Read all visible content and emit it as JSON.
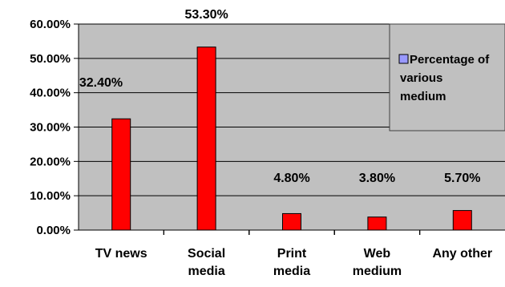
{
  "chart_data": {
    "type": "bar",
    "categories": [
      "TV news",
      "Social media",
      "Print media",
      "Web medium",
      "Any other"
    ],
    "series": [
      {
        "name": "Percentage of various medium",
        "values": [
          32.4,
          53.3,
          4.8,
          3.8,
          5.7
        ],
        "labels": [
          "32.40%",
          "53.30%",
          "4.80%",
          "3.80%",
          "5.70%"
        ]
      }
    ],
    "ylim": [
      0,
      60
    ],
    "yticks": [
      {
        "value": 0,
        "label": "0.00%"
      },
      {
        "value": 10,
        "label": "10.00%"
      },
      {
        "value": 20,
        "label": "20.00%"
      },
      {
        "value": 30,
        "label": "30.00%"
      },
      {
        "value": 40,
        "label": "40.00%"
      },
      {
        "value": 50,
        "label": "50.00%"
      },
      {
        "value": 60,
        "label": "60.00%"
      }
    ],
    "grid": true,
    "legend_placement": "right",
    "colors": {
      "bar_fill": "#ff0000",
      "bar_stroke": "#000000",
      "plot_bg": "#c0c0c0",
      "legend_marker": "#9999ff"
    }
  }
}
